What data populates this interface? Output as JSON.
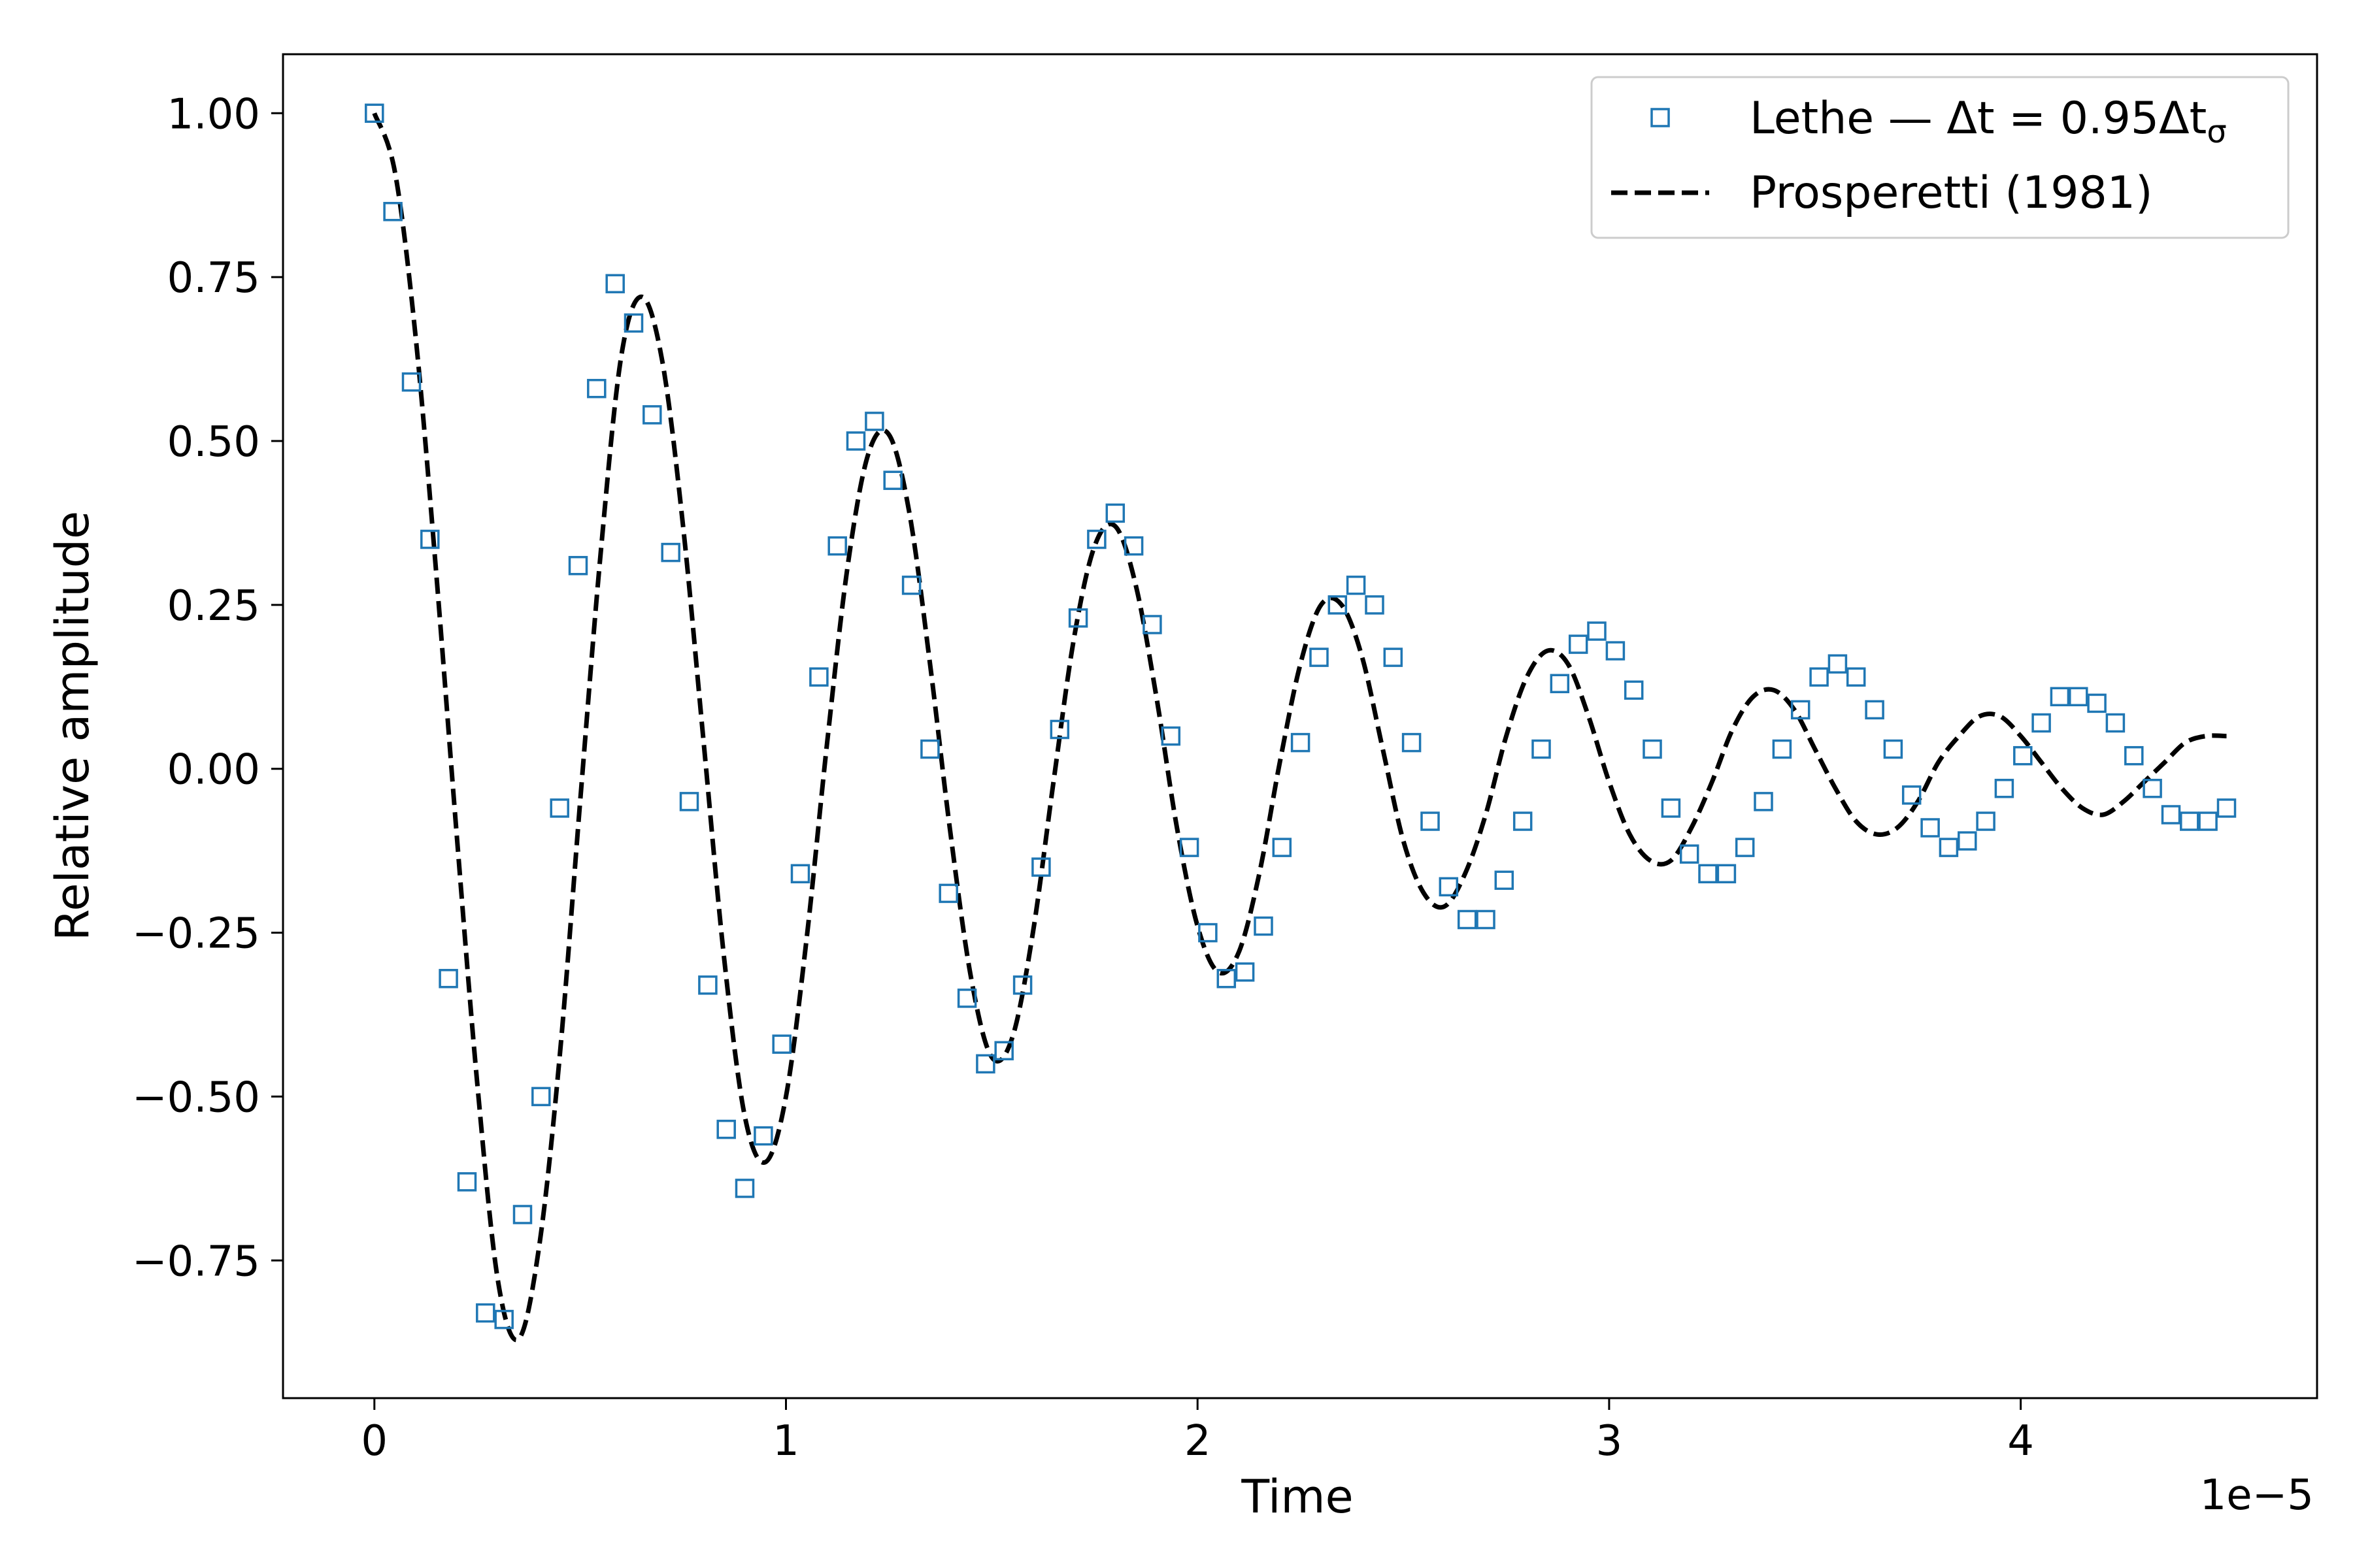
{
  "chart_data": {
    "type": "line",
    "xlabel": "Time",
    "ylabel": "Relative amplitude",
    "x_offset_label": "1e−5",
    "x_unit_scale": 1e-05,
    "xlim": [
      -0.222,
      4.72
    ],
    "ylim": [
      -0.96,
      1.09
    ],
    "x_ticks": [
      {
        "value": 0,
        "label": "0"
      },
      {
        "value": 1,
        "label": "1"
      },
      {
        "value": 2,
        "label": "2"
      },
      {
        "value": 3,
        "label": "3"
      },
      {
        "value": 4,
        "label": "4"
      }
    ],
    "y_ticks": [
      {
        "value": 1.0,
        "label": "1.00"
      },
      {
        "value": 0.75,
        "label": "0.75"
      },
      {
        "value": 0.5,
        "label": "0.50"
      },
      {
        "value": 0.25,
        "label": "0.25"
      },
      {
        "value": 0.0,
        "label": "0.00"
      },
      {
        "value": -0.25,
        "label": "−0.25"
      },
      {
        "value": -0.5,
        "label": "−0.50"
      },
      {
        "value": -0.75,
        "label": "−0.75"
      }
    ],
    "grid": false,
    "legend_position": "top-right",
    "series": [
      {
        "name": "Lethe — Δt = 0.95Δt",
        "name_subscript": "σ",
        "style": "square-markers",
        "color": "#1f77b4",
        "x": [
          0,
          0.045,
          0.09,
          0.135,
          0.18,
          0.225,
          0.27,
          0.315,
          0.36,
          0.405,
          0.45,
          0.495,
          0.54,
          0.585,
          0.63,
          0.675,
          0.72,
          0.765,
          0.81,
          0.855,
          0.9,
          0.945,
          0.99,
          1.035,
          1.08,
          1.125,
          1.17,
          1.215,
          1.26,
          1.305,
          1.35,
          1.395,
          1.44,
          1.485,
          1.53,
          1.575,
          1.62,
          1.665,
          1.71,
          1.755,
          1.8,
          1.845,
          1.89,
          1.935,
          1.98,
          2.025,
          2.07,
          2.115,
          2.16,
          2.205,
          2.25,
          2.295,
          2.34,
          2.385,
          2.43,
          2.475,
          2.52,
          2.565,
          2.61,
          2.655,
          2.7,
          2.745,
          2.79,
          2.835,
          2.88,
          2.925,
          2.97,
          3.015,
          3.06,
          3.105,
          3.15,
          3.195,
          3.24,
          3.285,
          3.33,
          3.375,
          3.42,
          3.465,
          3.51,
          3.555,
          3.6,
          3.645,
          3.69,
          3.735,
          3.78,
          3.825,
          3.87,
          3.915,
          3.96,
          4.005,
          4.05,
          4.095,
          4.14,
          4.185,
          4.23,
          4.275,
          4.32,
          4.365,
          4.41,
          4.455,
          4.5
        ],
        "y": [
          1.0,
          0.85,
          0.59,
          0.35,
          -0.32,
          -0.63,
          -0.83,
          -0.84,
          -0.68,
          -0.5,
          -0.06,
          0.31,
          0.58,
          0.74,
          0.68,
          0.54,
          0.33,
          -0.05,
          -0.33,
          -0.55,
          -0.64,
          -0.56,
          -0.42,
          -0.16,
          0.14,
          0.34,
          0.5,
          0.53,
          0.44,
          0.28,
          0.03,
          -0.19,
          -0.35,
          -0.45,
          -0.43,
          -0.33,
          -0.15,
          0.06,
          0.23,
          0.35,
          0.39,
          0.34,
          0.22,
          0.05,
          -0.12,
          -0.25,
          -0.32,
          -0.31,
          -0.24,
          -0.12,
          0.04,
          0.17,
          0.25,
          0.28,
          0.25,
          0.17,
          0.04,
          -0.08,
          -0.18,
          -0.23,
          -0.23,
          -0.17,
          -0.08,
          0.03,
          0.13,
          0.19,
          0.21,
          0.18,
          0.12,
          0.03,
          -0.06,
          -0.13,
          -0.16,
          -0.16,
          -0.12,
          -0.05,
          0.03,
          0.09,
          0.14,
          0.16,
          0.14,
          0.09,
          0.03,
          -0.04,
          -0.09,
          -0.12,
          -0.11,
          -0.08,
          -0.03,
          0.02,
          0.07,
          0.11,
          0.11,
          0.1,
          0.07,
          0.02,
          -0.03,
          -0.07,
          -0.08,
          -0.08,
          -0.06
        ]
      },
      {
        "name": "Prosperetti (1981)",
        "style": "dashed-line",
        "color": "#000000",
        "x": [
          0,
          0.05,
          0.1,
          0.15,
          0.2,
          0.25,
          0.3,
          0.35,
          0.4,
          0.45,
          0.5,
          0.55,
          0.6,
          0.65,
          0.7,
          0.75,
          0.8,
          0.85,
          0.9,
          0.95,
          1.0,
          1.05,
          1.1,
          1.15,
          1.2,
          1.25,
          1.3,
          1.35,
          1.4,
          1.45,
          1.5,
          1.55,
          1.6,
          1.65,
          1.7,
          1.75,
          1.8,
          1.85,
          1.9,
          1.95,
          2.0,
          2.05,
          2.1,
          2.15,
          2.2,
          2.25,
          2.3,
          2.35,
          2.4,
          2.45,
          2.5,
          2.55,
          2.6,
          2.65,
          2.7,
          2.75,
          2.8,
          2.85,
          2.9,
          2.95,
          3.0,
          3.05,
          3.1,
          3.15,
          3.2,
          3.25,
          3.3,
          3.35,
          3.4,
          3.45,
          3.5,
          3.55,
          3.6,
          3.65,
          3.7,
          3.75,
          3.8,
          3.85,
          3.9,
          3.95,
          4.0,
          4.05,
          4.1,
          4.15,
          4.2,
          4.25,
          4.3,
          4.35,
          4.4,
          4.45,
          4.5
        ],
        "y": [
          1.0,
          0.91,
          0.66,
          0.3,
          -0.1,
          -0.48,
          -0.78,
          -0.87,
          -0.73,
          -0.44,
          -0.05,
          0.33,
          0.63,
          0.72,
          0.62,
          0.37,
          0.04,
          -0.29,
          -0.53,
          -0.6,
          -0.5,
          -0.26,
          0.04,
          0.31,
          0.48,
          0.51,
          0.39,
          0.16,
          -0.1,
          -0.32,
          -0.44,
          -0.41,
          -0.25,
          -0.02,
          0.2,
          0.34,
          0.37,
          0.28,
          0.11,
          -0.09,
          -0.24,
          -0.31,
          -0.28,
          -0.16,
          0.01,
          0.16,
          0.25,
          0.25,
          0.17,
          0.03,
          -0.11,
          -0.19,
          -0.21,
          -0.16,
          -0.07,
          0.05,
          0.14,
          0.18,
          0.16,
          0.08,
          -0.02,
          -0.1,
          -0.14,
          -0.14,
          -0.09,
          -0.02,
          0.06,
          0.11,
          0.12,
          0.09,
          0.03,
          -0.03,
          -0.08,
          -0.1,
          -0.09,
          -0.05,
          0.01,
          0.05,
          0.08,
          0.08,
          0.05,
          0.01,
          -0.03,
          -0.06,
          -0.07,
          -0.05,
          -0.02,
          0.01,
          0.04,
          0.05,
          0.05
        ]
      }
    ]
  }
}
